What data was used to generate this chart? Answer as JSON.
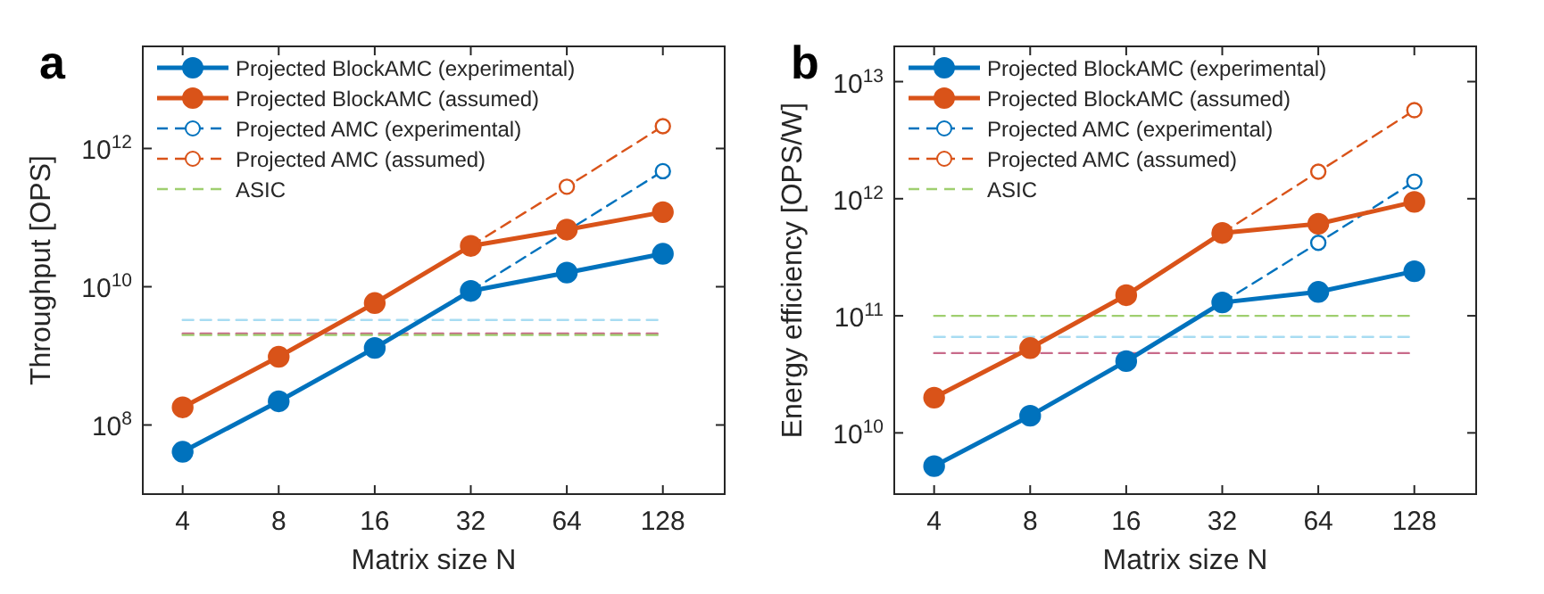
{
  "chart_data": [
    {
      "type": "line",
      "annotations": [
        "a"
      ],
      "xlabel": "Matrix size N",
      "ylabel": "Throughput [OPS]",
      "log": "xy",
      "x": [
        4,
        8,
        16,
        32,
        64,
        128
      ],
      "xlim": [
        3,
        200
      ],
      "xticks": [
        4,
        8,
        16,
        32,
        64,
        128
      ],
      "ylim": [
        10000000.0,
        30000000000000.0
      ],
      "yticks": [
        {
          "value": 100000000.0,
          "label": "10$^{8}$"
        },
        {
          "value": 10000000000.0,
          "label": "10$^{10}$"
        },
        {
          "value": 1000000000000.0,
          "label": "10$^{12}$"
        }
      ],
      "legend": "top left",
      "grid": false,
      "series": [
        {
          "name": "Projected BlockAMC (experimental)",
          "color": "#0072bd",
          "marker": "circle",
          "line_style": "solid",
          "values": [
            41000000.0,
            220000000.0,
            1300000000.0,
            8700000000.0,
            16000000000.0,
            30000000000.0
          ]
        },
        {
          "name": "Projected BlockAMC (assumed)",
          "color": "#d95319",
          "marker": "circle",
          "line_style": "solid",
          "values": [
            180000000.0,
            970000000.0,
            5800000000.0,
            39000000000.0,
            67000000000.0,
            120000000000.0
          ]
        },
        {
          "name": "Projected AMC (experimental)",
          "color": "#0072bd",
          "marker": "circle",
          "line_style": "dashed",
          "x": [
            32,
            64,
            128
          ],
          "values": [
            8700000000.0,
            64000000000.0,
            470000000000.0
          ]
        },
        {
          "name": "Projected AMC (assumed)",
          "color": "#d95319",
          "marker": "circle",
          "line_style": "dashed",
          "x": [
            32,
            64,
            128
          ],
          "values": [
            39000000000.0,
            280000000000.0,
            2100000000000.0
          ]
        },
        {
          "name": "ASIC",
          "color": "#9fcf6f",
          "marker": "none",
          "line_style": "dashed",
          "x": [
            4,
            128
          ],
          "values": [
            2000000000.0,
            2000000000.0
          ]
        },
        {
          "color": "#a8dcf2",
          "marker": "none",
          "line_style": "dashed",
          "x": [
            4,
            128
          ],
          "values": [
            3300000000.0,
            3300000000.0
          ]
        },
        {
          "color": "#c86a8a",
          "marker": "none",
          "line_style": "dashed",
          "x": [
            4,
            128
          ],
          "values": [
            2100000000.0,
            2100000000.0
          ]
        }
      ]
    },
    {
      "type": "line",
      "annotations": [
        "b"
      ],
      "xlabel": "Matrix size N",
      "ylabel": "Energy efficiency [OPS/W]",
      "log": "xy",
      "x": [
        4,
        8,
        16,
        32,
        64,
        128
      ],
      "xlim": [
        3,
        200
      ],
      "xticks": [
        4,
        8,
        16,
        32,
        64,
        128
      ],
      "ylim": [
        3000000000.0,
        20000000000000.0
      ],
      "yticks": [
        {
          "value": 10000000000.0,
          "label": "10$^{10}$"
        },
        {
          "value": 100000000000.0,
          "label": "10$^{11}$"
        },
        {
          "value": 1000000000000.0,
          "label": "10$^{12}$"
        },
        {
          "value": 10000000000000.0,
          "label": "10$^{13}$"
        }
      ],
      "legend": "top left",
      "grid": false,
      "series": [
        {
          "name": "Projected BlockAMC (experimental)",
          "color": "#0072bd",
          "marker": "circle",
          "line_style": "solid",
          "values": [
            5200000000.0,
            14000000000.0,
            41000000000.0,
            130000000000.0,
            160000000000.0,
            240000000000.0
          ]
        },
        {
          "name": "Projected BlockAMC (assumed)",
          "color": "#d95319",
          "marker": "circle",
          "line_style": "solid",
          "values": [
            20000000000.0,
            53000000000.0,
            150000000000.0,
            510000000000.0,
            610000000000.0,
            940000000000.0
          ]
        },
        {
          "name": "Projected AMC (experimental)",
          "color": "#0072bd",
          "marker": "circle",
          "line_style": "dashed",
          "x": [
            32,
            64,
            128
          ],
          "values": [
            130000000000.0,
            420000000000.0,
            1400000000000.0
          ]
        },
        {
          "name": "Projected AMC (assumed)",
          "color": "#d95319",
          "marker": "circle",
          "line_style": "dashed",
          "x": [
            32,
            64,
            128
          ],
          "values": [
            510000000000.0,
            1700000000000.0,
            5700000000000.0
          ]
        },
        {
          "name": "ASIC",
          "color": "#9fcf6f",
          "marker": "none",
          "line_style": "dashed",
          "x": [
            4,
            128
          ],
          "values": [
            100000000000.0,
            100000000000.0
          ]
        },
        {
          "color": "#a8dcf2",
          "marker": "none",
          "line_style": "dashed",
          "x": [
            4,
            128
          ],
          "values": [
            66000000000.0,
            66000000000.0
          ]
        },
        {
          "color": "#c86a8a",
          "marker": "none",
          "line_style": "dashed",
          "x": [
            4,
            128
          ],
          "values": [
            48000000000.0,
            48000000000.0
          ]
        }
      ]
    }
  ]
}
